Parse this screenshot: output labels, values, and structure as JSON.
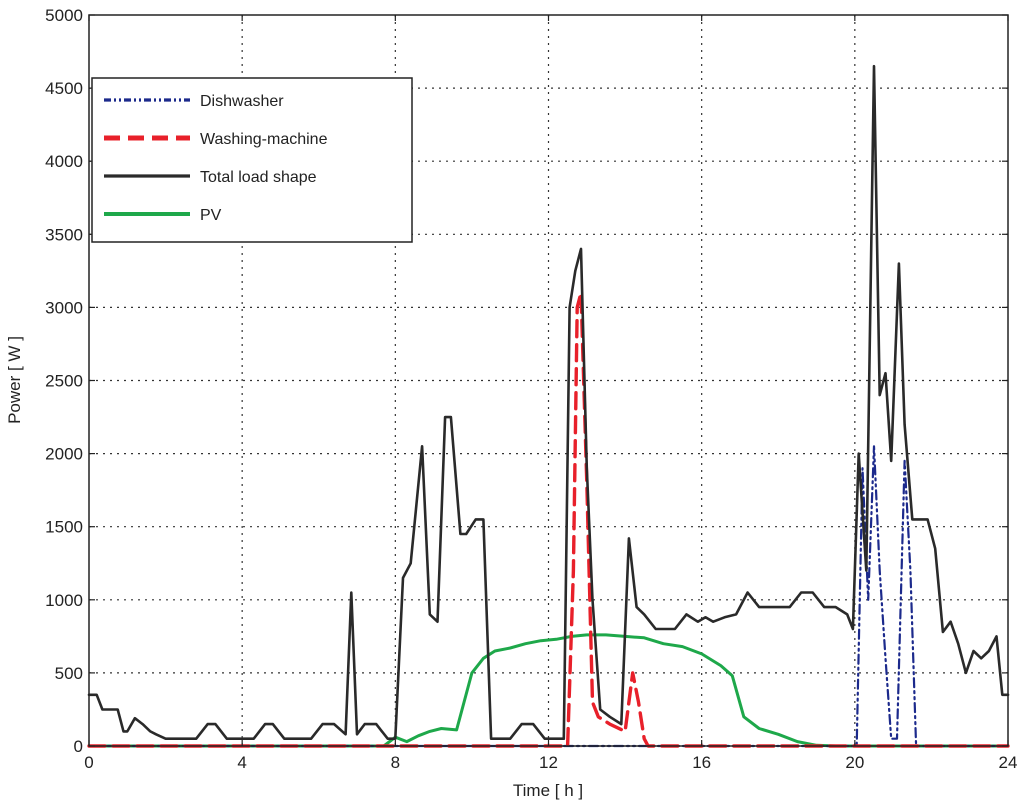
{
  "chart_data": {
    "type": "line",
    "xlabel": "Time [ h ]",
    "ylabel": "Power [ W ]",
    "xlim": [
      0,
      24
    ],
    "ylim": [
      0,
      5000
    ],
    "xticks": [
      0,
      4,
      8,
      12,
      16,
      20,
      24
    ],
    "yticks": [
      0,
      500,
      1000,
      1500,
      2000,
      2500,
      3000,
      3500,
      4000,
      4500,
      5000
    ],
    "grid": true,
    "legend_position": "top-left",
    "series": [
      {
        "name": "Dishwasher",
        "color": "#1c2a8c",
        "style": "dash-dot",
        "x": [
          0,
          20.05,
          20.2,
          20.35,
          20.5,
          20.65,
          20.8,
          20.95,
          21.1,
          21.3,
          21.45,
          21.6,
          24
        ],
        "y": [
          0,
          0,
          1900,
          1000,
          2050,
          1200,
          600,
          50,
          50,
          1950,
          1200,
          0,
          0
        ]
      },
      {
        "name": "Washing-machine",
        "color": "#e8202a",
        "style": "dashed",
        "x": [
          0,
          12.5,
          12.65,
          12.75,
          12.85,
          13.0,
          13.15,
          13.3,
          13.6,
          14.0,
          14.2,
          14.35,
          14.5,
          14.6,
          15,
          24
        ],
        "y": [
          0,
          0,
          1200,
          3000,
          3100,
          1800,
          300,
          200,
          150,
          100,
          500,
          300,
          50,
          0,
          0,
          0
        ]
      },
      {
        "name": "Total load shape",
        "color": "#2a2a2a",
        "style": "solid",
        "x": [
          0,
          0.2,
          0.35,
          0.6,
          0.75,
          0.9,
          1.0,
          1.2,
          1.4,
          1.6,
          1.75,
          2.0,
          2.2,
          2.6,
          2.8,
          3.1,
          3.3,
          3.6,
          4.0,
          4.3,
          4.6,
          4.8,
          5.1,
          5.4,
          5.8,
          6.1,
          6.4,
          6.7,
          6.85,
          7.0,
          7.2,
          7.5,
          7.8,
          8.0,
          8.2,
          8.4,
          8.7,
          8.9,
          9.1,
          9.3,
          9.45,
          9.7,
          9.85,
          10.1,
          10.3,
          10.5,
          10.7,
          11.0,
          11.3,
          11.6,
          11.9,
          12.1,
          12.4,
          12.55,
          12.7,
          12.85,
          13.0,
          13.15,
          13.35,
          13.6,
          13.9,
          14.1,
          14.3,
          14.5,
          14.8,
          15.0,
          15.3,
          15.6,
          15.9,
          16.1,
          16.3,
          16.6,
          16.9,
          17.2,
          17.5,
          17.7,
          18.0,
          18.3,
          18.6,
          18.9,
          19.2,
          19.5,
          19.8,
          19.95,
          20.1,
          20.3,
          20.5,
          20.65,
          20.8,
          20.95,
          21.15,
          21.3,
          21.5,
          21.7,
          21.9,
          22.1,
          22.3,
          22.5,
          22.7,
          22.9,
          23.1,
          23.3,
          23.5,
          23.7,
          23.85,
          24.0
        ],
        "y": [
          350,
          350,
          250,
          250,
          250,
          100,
          100,
          190,
          150,
          100,
          80,
          50,
          50,
          50,
          50,
          150,
          150,
          50,
          50,
          50,
          150,
          150,
          50,
          50,
          50,
          150,
          150,
          80,
          1050,
          80,
          150,
          150,
          50,
          50,
          1150,
          1250,
          2050,
          900,
          850,
          2250,
          2250,
          1450,
          1450,
          1550,
          1550,
          50,
          50,
          50,
          150,
          150,
          50,
          50,
          50,
          3000,
          3250,
          3400,
          1900,
          1000,
          250,
          200,
          150,
          1420,
          950,
          900,
          800,
          800,
          800,
          900,
          850,
          880,
          850,
          880,
          900,
          1050,
          950,
          950,
          950,
          950,
          1050,
          1050,
          950,
          950,
          900,
          800,
          2000,
          1200,
          4650,
          2400,
          2550,
          1950,
          3300,
          2200,
          1550,
          1550,
          1550,
          1350,
          780,
          850,
          700,
          500,
          650,
          600,
          650,
          750,
          350,
          350
        ]
      },
      {
        "name": "PV",
        "color": "#1ea84a",
        "style": "solid",
        "x": [
          0,
          7.7,
          8.0,
          8.3,
          8.6,
          8.9,
          9.2,
          9.6,
          10.0,
          10.3,
          10.6,
          11.0,
          11.4,
          11.8,
          12.2,
          12.6,
          13.0,
          13.5,
          14.0,
          14.5,
          15.0,
          15.5,
          16.0,
          16.5,
          16.8,
          17.1,
          17.5,
          18.0,
          18.5,
          19.0,
          19.5,
          24
        ],
        "y": [
          0,
          0,
          60,
          30,
          70,
          100,
          120,
          110,
          500,
          600,
          650,
          670,
          700,
          720,
          730,
          750,
          760,
          760,
          750,
          740,
          700,
          680,
          630,
          550,
          480,
          200,
          120,
          80,
          30,
          5,
          0,
          0
        ]
      }
    ]
  }
}
